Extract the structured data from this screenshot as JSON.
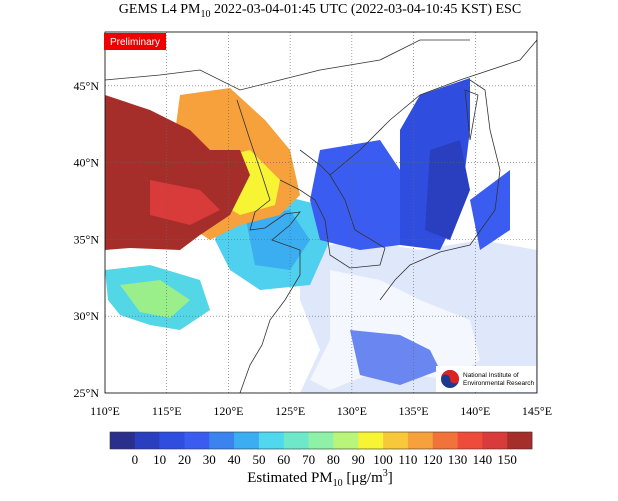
{
  "map": {
    "title": {
      "prefix": "GEMS L4 PM",
      "sub": "10",
      "suffix": " 2022-03-04-01:45 UTC (2022-03-04-10:45 KST) ESC"
    },
    "badge": "Preliminary",
    "xlim": [
      110,
      145
    ],
    "ylim": [
      25,
      48.5
    ],
    "xticks": [
      {
        "value": 110,
        "label": "110°E"
      },
      {
        "value": 115,
        "label": "115°E"
      },
      {
        "value": 120,
        "label": "120°E"
      },
      {
        "value": 125,
        "label": "125°E"
      },
      {
        "value": 130,
        "label": "130°E"
      },
      {
        "value": 135,
        "label": "135°E"
      },
      {
        "value": 140,
        "label": "140°E"
      },
      {
        "value": 145,
        "label": "145°E"
      }
    ],
    "yticks": [
      {
        "value": 25,
        "label": "25°N"
      },
      {
        "value": 30,
        "label": "30°N"
      },
      {
        "value": 35,
        "label": "35°N"
      },
      {
        "value": 40,
        "label": "40°N"
      },
      {
        "value": 45,
        "label": "45°N"
      }
    ],
    "grid": true,
    "logo": [
      "National Institute of",
      "Environmental Research"
    ]
  },
  "colorbar": {
    "colors": [
      "#2b2f8c",
      "#2a3fc0",
      "#2f4ee0",
      "#3a5cf0",
      "#3b84f0",
      "#3aaef0",
      "#4fd8ee",
      "#6ee8c8",
      "#8ff0a8",
      "#b8f57a",
      "#f6f433",
      "#f7c93a",
      "#f6a13c",
      "#f2733a",
      "#ee4b3a",
      "#d93a3a",
      "#a52e2a"
    ],
    "ticks": [
      0,
      10,
      20,
      30,
      40,
      50,
      60,
      70,
      80,
      90,
      100,
      110,
      120,
      130,
      140,
      150
    ],
    "label": {
      "prefix": "Estimated PM",
      "sub": "10",
      "unit": " [μg/m",
      "sup": "3",
      "end": "]"
    }
  }
}
